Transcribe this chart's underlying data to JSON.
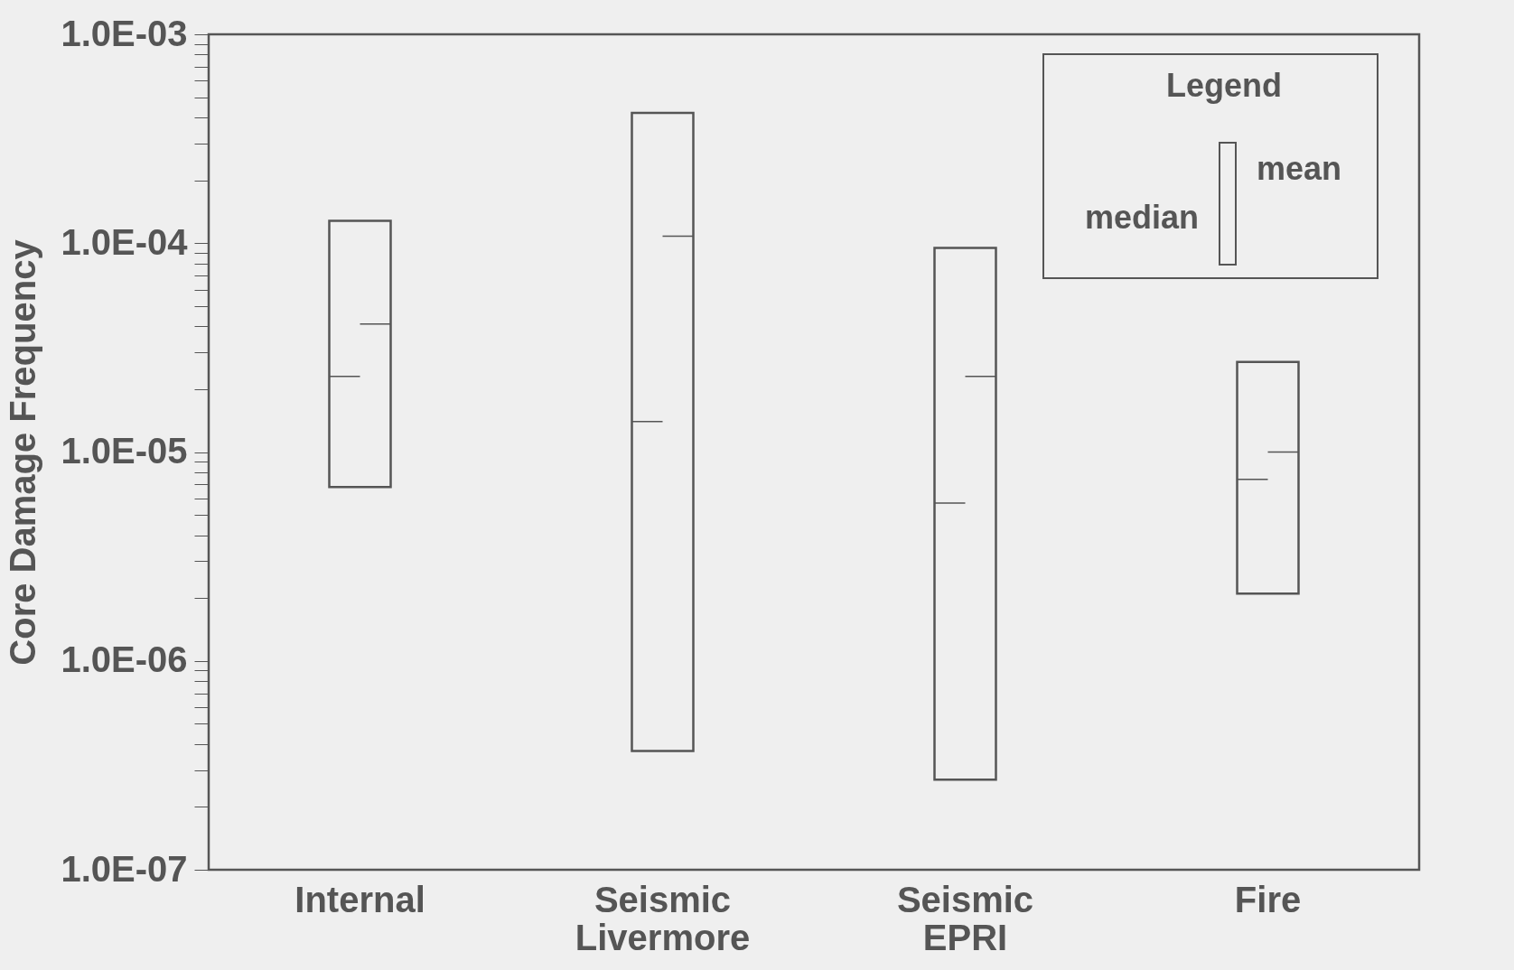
{
  "chart_data": {
    "type": "box",
    "ylabel": "Core Damage Frequency",
    "legend_title": "Legend",
    "log": true,
    "categories": [
      "Internal",
      "Seismic Livermore",
      "Seismic EPRI",
      "Fire"
    ],
    "boxes": [
      {
        "low": 6.8e-06,
        "q1": 6.8e-06,
        "median": 2.3e-05,
        "q3": 0.000128,
        "high": 0.000128,
        "mean": 4.1e-05
      },
      {
        "low": 3.7e-07,
        "q1": 3.7e-07,
        "median": 1.4e-05,
        "q3": 0.00042,
        "high": 0.00042,
        "mean": 0.000108
      },
      {
        "low": 2.7e-07,
        "q1": 2.7e-07,
        "median": 5.7e-06,
        "q3": 9.5e-05,
        "high": 9.5e-05,
        "mean": 2.3e-05
      },
      {
        "low": 2.1e-06,
        "q1": 2.1e-06,
        "median": 7.4e-06,
        "q3": 2.7e-05,
        "high": 2.7e-05,
        "mean": 1e-05
      }
    ],
    "annotations": [
      "median",
      "mean"
    ],
    "ylim": [
      1e-07,
      0.001
    ],
    "yticks": [
      {
        "value": 1e-07,
        "label": "1.0E-07"
      },
      {
        "value": 2e-07,
        "label": null
      },
      {
        "value": 3e-07,
        "label": null
      },
      {
        "value": 4e-07,
        "label": null
      },
      {
        "value": 5e-07,
        "label": null
      },
      {
        "value": 6e-07,
        "label": null
      },
      {
        "value": 7e-07,
        "label": null
      },
      {
        "value": 8e-07,
        "label": null
      },
      {
        "value": 9e-07,
        "label": null
      },
      {
        "value": 1e-06,
        "label": "1.0E-06"
      },
      {
        "value": 2e-06,
        "label": null
      },
      {
        "value": 3e-06,
        "label": null
      },
      {
        "value": 4e-06,
        "label": null
      },
      {
        "value": 5e-06,
        "label": null
      },
      {
        "value": 6e-06,
        "label": null
      },
      {
        "value": 7e-06,
        "label": null
      },
      {
        "value": 8e-06,
        "label": null
      },
      {
        "value": 9e-06,
        "label": null
      },
      {
        "value": 1e-05,
        "label": "1.0E-05"
      },
      {
        "value": 2e-05,
        "label": null
      },
      {
        "value": 3e-05,
        "label": null
      },
      {
        "value": 4e-05,
        "label": null
      },
      {
        "value": 5e-05,
        "label": null
      },
      {
        "value": 6e-05,
        "label": null
      },
      {
        "value": 7e-05,
        "label": null
      },
      {
        "value": 8e-05,
        "label": null
      },
      {
        "value": 9e-05,
        "label": null
      },
      {
        "value": 0.0001,
        "label": "1.0E-04"
      },
      {
        "value": 0.0002,
        "label": null
      },
      {
        "value": 0.0003,
        "label": null
      },
      {
        "value": 0.0004,
        "label": null
      },
      {
        "value": 0.0005,
        "label": null
      },
      {
        "value": 0.0006,
        "label": null
      },
      {
        "value": 0.0007,
        "label": null
      },
      {
        "value": 0.0008,
        "label": null
      },
      {
        "value": 0.0009,
        "label": null
      },
      {
        "value": 0.001,
        "label": "1.0E-03"
      }
    ]
  }
}
